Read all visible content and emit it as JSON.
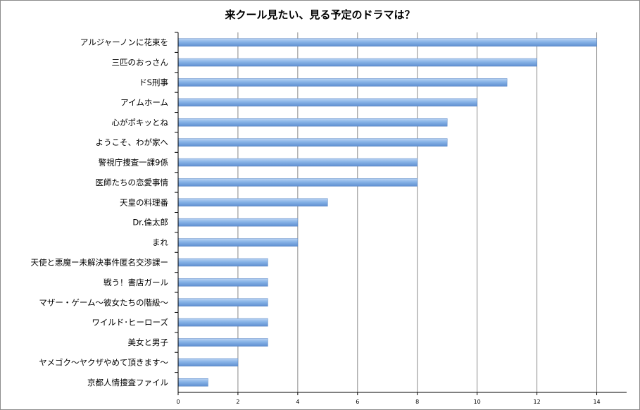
{
  "chart_data": {
    "type": "bar",
    "orientation": "horizontal",
    "title": "来クール見たい、見る予定のドラマは？",
    "categories": [
      "アルジャーノンに花束を",
      "三匹のおっさん",
      "ドS刑事",
      "アイムホーム",
      "心がポキッとね",
      "ようこそ、わが家へ",
      "警視庁捜査一課9係",
      "医師たちの恋愛事情",
      "天皇の料理番",
      "Dr.倫太郎",
      "まれ",
      "天使と悪魔ー未解決事件匿名交渉課ー",
      "戦う！書店ガール",
      "マザー・ゲーム～彼女たちの階級～",
      "ワイルド･ヒーローズ",
      "美女と男子",
      "ヤメゴク～ヤクザやめて頂きます～",
      "京都人情捜査ファイル"
    ],
    "values": [
      14,
      12,
      11,
      10,
      9,
      9,
      8,
      8,
      5,
      4,
      4,
      3,
      3,
      3,
      3,
      3,
      2,
      1
    ],
    "xlim": [
      0,
      15
    ],
    "xticks": [
      0,
      2,
      4,
      6,
      8,
      10,
      12,
      14
    ],
    "grid": "vertical",
    "legend": "none",
    "bar_color": "#7aa9e0",
    "xlabel": "",
    "ylabel": ""
  }
}
